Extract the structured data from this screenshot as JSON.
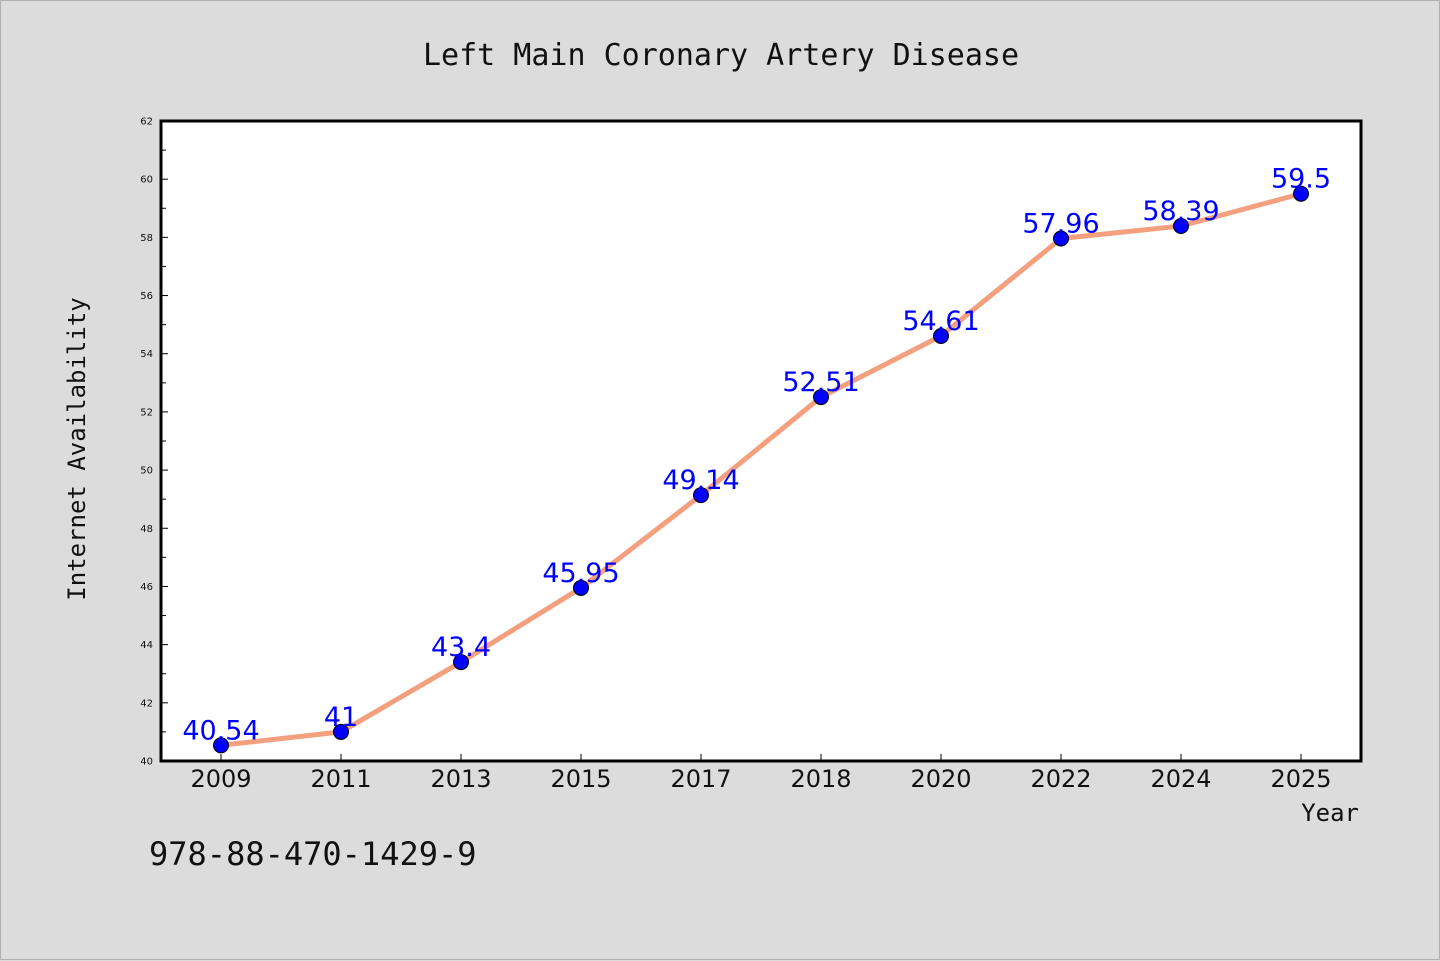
{
  "chart_data": {
    "type": "line",
    "title": "Left Main Coronary Artery Disease",
    "xlabel": "Year",
    "ylabel": "Internet Availability",
    "categories": [
      "2009",
      "2011",
      "2013",
      "2015",
      "2017",
      "2018",
      "2020",
      "2022",
      "2024",
      "2025"
    ],
    "values": [
      40.54,
      41,
      43.4,
      45.95,
      49.14,
      52.51,
      54.61,
      57.96,
      58.39,
      59.5
    ],
    "data_labels": [
      "40.54",
      "41",
      "43.4",
      "45.95",
      "49.14",
      "52.51",
      "54.61",
      "57.96",
      "58.39",
      "59.5"
    ],
    "ylim": [
      40,
      62
    ],
    "yticks": [
      40,
      42,
      44,
      46,
      48,
      50,
      52,
      54,
      56,
      58,
      60,
      62
    ],
    "grid": false,
    "legend": "none",
    "colors": {
      "line": "#f4a07f",
      "marker": "#0000ff",
      "label": "#0000ff",
      "background": "#dcdcdc",
      "plot_background": "#ffffff"
    }
  },
  "footer": {
    "text": "978-88-470-1429-9"
  }
}
